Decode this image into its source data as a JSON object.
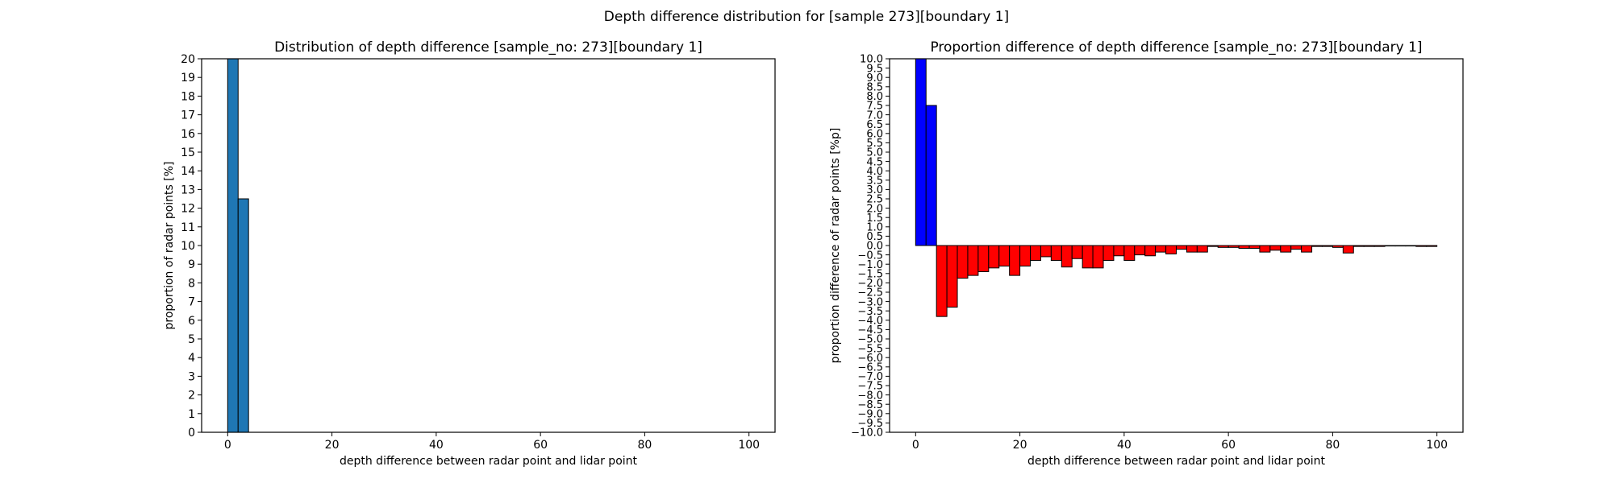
{
  "suptitle": "Depth difference distribution for [sample 273][boundary 1]",
  "chart_data": [
    {
      "type": "bar",
      "title": "Distribution of depth difference [sample_no: 273][boundary 1]",
      "xlabel": "depth difference between radar point and lidar point",
      "ylabel": "proportion of radar points [%]",
      "xlim": [
        -5,
        105
      ],
      "ylim": [
        0,
        20
      ],
      "xticks": [
        0,
        20,
        40,
        60,
        80,
        100
      ],
      "yticks": [
        0,
        1,
        2,
        3,
        4,
        5,
        6,
        7,
        8,
        9,
        10,
        11,
        12,
        13,
        14,
        15,
        16,
        17,
        18,
        19,
        20
      ],
      "bin_width": 2,
      "bin_starts": [
        0,
        2
      ],
      "values": [
        20,
        12.5
      ],
      "bar_color": "#1f77b4"
    },
    {
      "type": "bar",
      "title": "Proportion difference of depth difference [sample_no: 273][boundary 1]",
      "xlabel": "depth difference between radar point and lidar point",
      "ylabel": "proportion difference of radar points [%p]",
      "xlim": [
        -5,
        105
      ],
      "ylim": [
        -10,
        10
      ],
      "xticks": [
        0,
        20,
        40,
        60,
        80,
        100
      ],
      "yticks": [
        -10,
        -9.5,
        -9,
        -8.5,
        -8,
        -7.5,
        -7,
        -6.5,
        -6,
        -5.5,
        -5,
        -4.5,
        -4,
        -3.5,
        -3,
        -2.5,
        -2,
        -1.5,
        -1,
        -0.5,
        0,
        0.5,
        1,
        1.5,
        2,
        2.5,
        3,
        3.5,
        4,
        4.5,
        5,
        5.5,
        6,
        6.5,
        7,
        7.5,
        8,
        8.5,
        9,
        9.5,
        10
      ],
      "bin_width": 2,
      "bin_starts": [
        0,
        2,
        4,
        6,
        8,
        10,
        12,
        14,
        16,
        18,
        20,
        22,
        24,
        26,
        28,
        30,
        32,
        34,
        36,
        38,
        40,
        42,
        44,
        46,
        48,
        50,
        52,
        54,
        56,
        58,
        60,
        62,
        64,
        66,
        68,
        70,
        72,
        74,
        76,
        78,
        80,
        82,
        84,
        86,
        88,
        90,
        92,
        94,
        96,
        98
      ],
      "values": [
        10,
        7.5,
        -3.8,
        -3.3,
        -1.75,
        -1.6,
        -1.4,
        -1.2,
        -1.1,
        -1.6,
        -1.1,
        -0.8,
        -0.6,
        -0.8,
        -1.15,
        -0.7,
        -1.2,
        -1.2,
        -0.8,
        -0.55,
        -0.8,
        -0.5,
        -0.55,
        -0.35,
        -0.45,
        -0.2,
        -0.35,
        -0.35,
        -0.05,
        -0.1,
        -0.1,
        -0.15,
        -0.15,
        -0.35,
        -0.25,
        -0.35,
        -0.2,
        -0.35,
        -0.05,
        -0.05,
        -0.1,
        -0.4,
        -0.05,
        -0.05,
        -0.05,
        0,
        0,
        0,
        -0.05,
        -0.05
      ],
      "positive_color": "#0000ff",
      "negative_color": "#ff0000"
    }
  ]
}
